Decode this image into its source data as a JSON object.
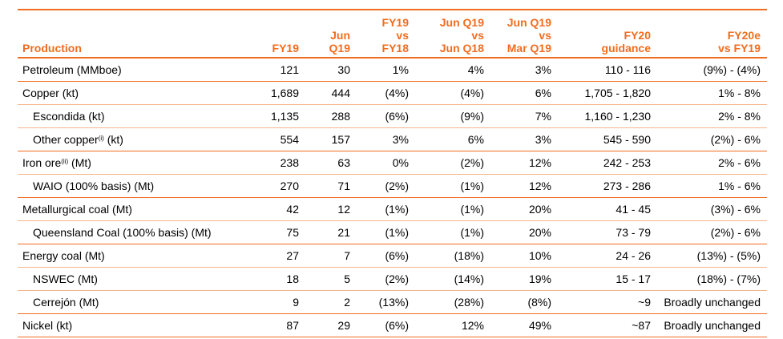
{
  "headers": [
    [
      "Production"
    ],
    [
      "FY19"
    ],
    [
      "Jun",
      "Q19"
    ],
    [
      "FY19",
      "vs",
      "FY18"
    ],
    [
      "Jun Q19",
      "vs",
      "Jun Q18"
    ],
    [
      "Jun Q19",
      "vs",
      "Mar Q19"
    ],
    [
      "FY20",
      "guidance"
    ],
    [
      "FY20e",
      "vs FY19"
    ]
  ],
  "rows": [
    {
      "label": "Petroleum (MMboe)",
      "sup": "",
      "suffix": "",
      "sub": false,
      "group_end": true,
      "values": [
        "121",
        "30",
        "1%",
        "4%",
        "3%",
        "110 - 116",
        "(9%) - (4%)"
      ]
    },
    {
      "label": "Copper (kt)",
      "sup": "",
      "suffix": "",
      "sub": false,
      "group_end": false,
      "values": [
        "1,689",
        "444",
        "(4%)",
        "(4%)",
        "6%",
        "1,705 - 1,820",
        "1% - 8%"
      ]
    },
    {
      "label": "Escondida (kt)",
      "sup": "",
      "suffix": "",
      "sub": true,
      "group_end": false,
      "values": [
        "1,135",
        "288",
        "(6%)",
        "(9%)",
        "7%",
        "1,160 - 1,230",
        "2% - 8%"
      ]
    },
    {
      "label": "Other copper",
      "sup": "(i)",
      "suffix": " (kt)",
      "sub": true,
      "group_end": true,
      "values": [
        "554",
        "157",
        "3%",
        "6%",
        "3%",
        "545 - 590",
        "(2%) - 6%"
      ]
    },
    {
      "label": "Iron ore",
      "sup": "(ii)",
      "suffix": " (Mt)",
      "sub": false,
      "group_end": false,
      "values": [
        "238",
        "63",
        "0%",
        "(2%)",
        "12%",
        "242 - 253",
        "2% - 6%"
      ]
    },
    {
      "label": "WAIO (100% basis) (Mt)",
      "sup": "",
      "suffix": "",
      "sub": true,
      "group_end": true,
      "values": [
        "270",
        "71",
        "(2%)",
        "(1%)",
        "12%",
        "273 - 286",
        "1% - 6%"
      ]
    },
    {
      "label": "Metallurgical coal (Mt)",
      "sup": "",
      "suffix": "",
      "sub": false,
      "group_end": false,
      "values": [
        "42",
        "12",
        "(1%)",
        "(1%)",
        "20%",
        "41 - 45",
        "(3%) - 6%"
      ]
    },
    {
      "label": "Queensland Coal (100% basis) (Mt)",
      "sup": "",
      "suffix": "",
      "sub": true,
      "group_end": true,
      "values": [
        "75",
        "21",
        "(1%)",
        "(1%)",
        "20%",
        "73 - 79",
        "(2%) - 6%"
      ]
    },
    {
      "label": "Energy coal (Mt)",
      "sup": "",
      "suffix": "",
      "sub": false,
      "group_end": false,
      "values": [
        "27",
        "7",
        "(6%)",
        "(18%)",
        "10%",
        "24 - 26",
        "(13%) - (5%)"
      ]
    },
    {
      "label": "NSWEC (Mt)",
      "sup": "",
      "suffix": "",
      "sub": true,
      "group_end": false,
      "values": [
        "18",
        "5",
        "(2%)",
        "(14%)",
        "19%",
        "15 - 17",
        "(18%) - (7%)"
      ]
    },
    {
      "label": "Cerrejón (Mt)",
      "sup": "",
      "suffix": "",
      "sub": true,
      "group_end": true,
      "values": [
        "9",
        "2",
        "(13%)",
        "(28%)",
        "(8%)",
        "~9",
        "Broadly unchanged"
      ]
    },
    {
      "label": "Nickel (kt)",
      "sup": "",
      "suffix": "",
      "sub": false,
      "group_end": true,
      "values": [
        "87",
        "29",
        "(6%)",
        "12%",
        "49%",
        "~87",
        "Broadly unchanged"
      ]
    }
  ],
  "colors": {
    "accent": "#f26c1f",
    "row_rule": "#f5b58a"
  }
}
